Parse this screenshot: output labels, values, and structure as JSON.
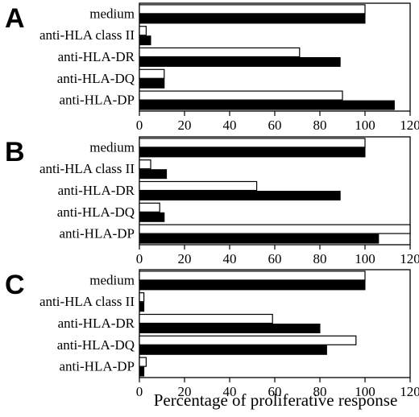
{
  "figure": {
    "xlabel": "Percentage of proliferative response"
  },
  "chart_data": [
    {
      "type": "bar",
      "panel": "A",
      "categories": [
        "medium",
        "anti-HLA class II",
        "anti-HLA-DR",
        "anti-HLA-DQ",
        "anti-HLA-DP"
      ],
      "series": [
        {
          "values": [
            100,
            3,
            71,
            11,
            90
          ],
          "color": "#ffffff"
        },
        {
          "values": [
            100,
            5,
            89,
            11,
            113
          ],
          "color": "#000000"
        }
      ],
      "xlim": [
        0,
        120
      ],
      "xticks": [
        0,
        20,
        40,
        60,
        80,
        100,
        120
      ]
    },
    {
      "type": "bar",
      "panel": "B",
      "categories": [
        "medium",
        "anti-HLA class II",
        "anti-HLA-DR",
        "anti-HLA-DQ",
        "anti-HLA-DP"
      ],
      "series": [
        {
          "values": [
            100,
            5,
            52,
            9,
            120
          ],
          "color": "#ffffff"
        },
        {
          "values": [
            100,
            12,
            89,
            11,
            106
          ],
          "color": "#000000"
        }
      ],
      "xlim": [
        0,
        120
      ],
      "xticks": [
        0,
        20,
        40,
        60,
        80,
        100,
        120
      ]
    },
    {
      "type": "bar",
      "panel": "C",
      "categories": [
        "medium",
        "anti-HLA class II",
        "anti-HLA-DR",
        "anti-HLA-DQ",
        "anti-HLA-DP"
      ],
      "series": [
        {
          "values": [
            100,
            2,
            59,
            96,
            3
          ],
          "color": "#ffffff"
        },
        {
          "values": [
            100,
            2,
            80,
            83,
            2
          ],
          "color": "#000000"
        }
      ],
      "xlim": [
        0,
        120
      ],
      "xticks": [
        0,
        20,
        40,
        60,
        80,
        100,
        120
      ]
    }
  ]
}
